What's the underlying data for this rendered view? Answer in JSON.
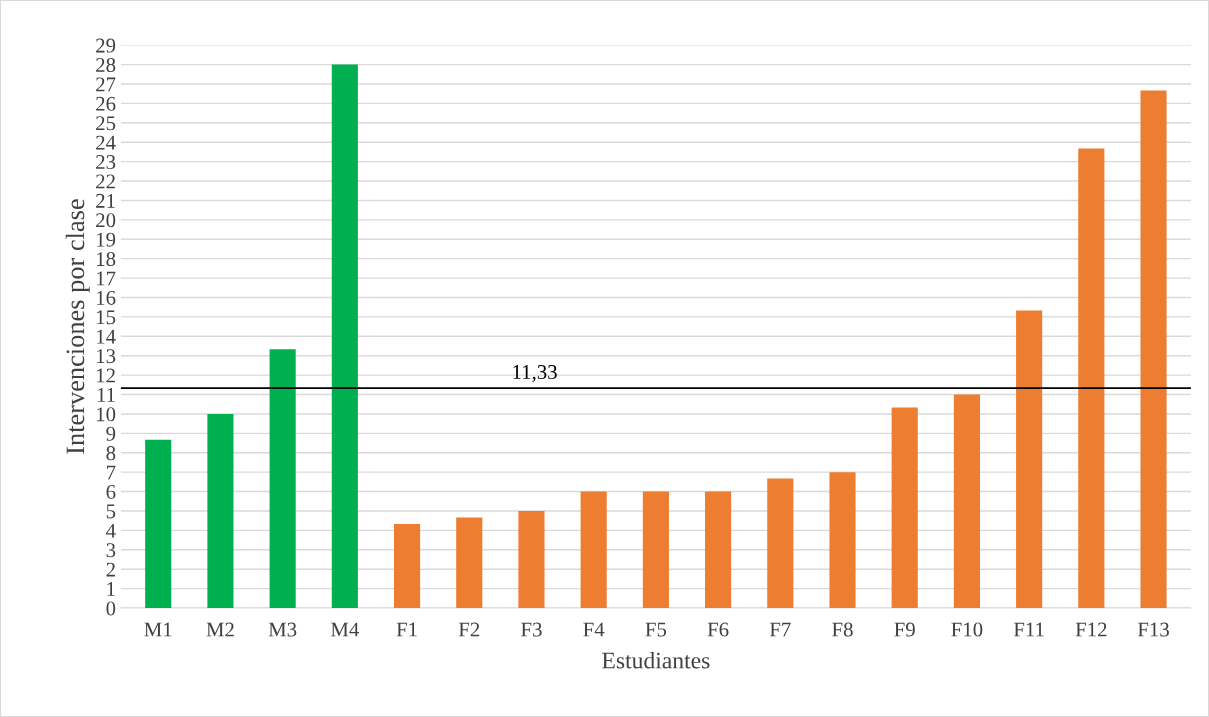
{
  "chart_data": {
    "type": "bar",
    "xlabel": "Estudiantes",
    "ylabel": "Intervenciones por clase",
    "categories": [
      "M1",
      "M2",
      "M3",
      "M4",
      "F1",
      "F2",
      "F3",
      "F4",
      "F5",
      "F6",
      "F7",
      "F8",
      "F9",
      "F10",
      "F11",
      "F12",
      "F13"
    ],
    "values": [
      8.67,
      10,
      13.33,
      28,
      4.33,
      4.67,
      5,
      6,
      6,
      6,
      6.67,
      7,
      10.33,
      11,
      15.33,
      23.67,
      26.67
    ],
    "colors": [
      "#00b050",
      "#00b050",
      "#00b050",
      "#00b050",
      "#ed7d31",
      "#ed7d31",
      "#ed7d31",
      "#ed7d31",
      "#ed7d31",
      "#ed7d31",
      "#ed7d31",
      "#ed7d31",
      "#ed7d31",
      "#ed7d31",
      "#ed7d31",
      "#ed7d31",
      "#ed7d31"
    ],
    "ylim": [
      0,
      29
    ],
    "yticks": [
      0,
      1,
      2,
      3,
      4,
      5,
      6,
      7,
      8,
      9,
      10,
      11,
      12,
      13,
      14,
      15,
      16,
      17,
      18,
      19,
      20,
      21,
      22,
      23,
      24,
      25,
      26,
      27,
      28,
      29
    ],
    "grid": "y",
    "ref_lines": [
      {
        "axis": "y",
        "value": 11.33,
        "label": "11,33",
        "color": "#000000",
        "line_style": "solid"
      }
    ]
  }
}
